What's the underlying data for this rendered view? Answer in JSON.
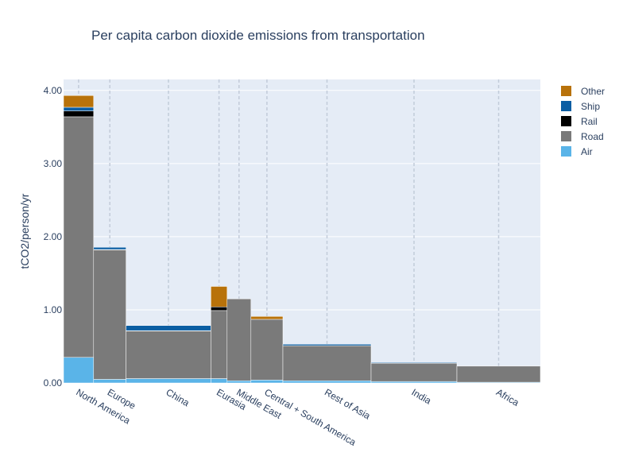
{
  "chart_data": {
    "type": "bar",
    "subtype": "variable-width stacked bar (Marimekko)",
    "title": "Per capita carbon dioxide emissions from transportation",
    "ylabel": "tCO2/person/yr",
    "xlabel": "",
    "ylim": [
      0,
      4.15
    ],
    "yticks": [
      0,
      1,
      2,
      3,
      4
    ],
    "ytick_labels": [
      "0.00",
      "1.00",
      "2.00",
      "3.00",
      "4.00"
    ],
    "legend_position": "top-right",
    "grid": true,
    "x_total": 1000,
    "categories": [
      "North America",
      "Europe",
      "China",
      "Eurasia",
      "Middle East",
      "Central + South America",
      "Rest of Asia",
      "India",
      "Africa"
    ],
    "widths": [
      63,
      68,
      178,
      34,
      50,
      67,
      185,
      180,
      175
    ],
    "series": [
      {
        "name": "Air",
        "color": "#5ab4e8",
        "values": [
          0.35,
          0.05,
          0.06,
          0.06,
          0.03,
          0.04,
          0.03,
          0.02,
          0.01
        ]
      },
      {
        "name": "Road",
        "color": "#7a7a7a",
        "values": [
          3.29,
          1.77,
          0.65,
          0.93,
          1.12,
          0.83,
          0.48,
          0.25,
          0.22
        ]
      },
      {
        "name": "Rail",
        "color": "#000000",
        "values": [
          0.08,
          0.005,
          0.005,
          0.05,
          0.0,
          0.0,
          0.0,
          0.0,
          0.0
        ]
      },
      {
        "name": "Ship",
        "color": "#0b5ea3",
        "values": [
          0.05,
          0.03,
          0.07,
          0.0,
          0.0,
          0.0,
          0.02,
          0.01,
          0.0
        ]
      },
      {
        "name": "Other",
        "color": "#b8720a",
        "values": [
          0.16,
          0.0,
          0.0,
          0.28,
          0.0,
          0.04,
          0.0,
          0.0,
          0.0
        ]
      }
    ]
  }
}
